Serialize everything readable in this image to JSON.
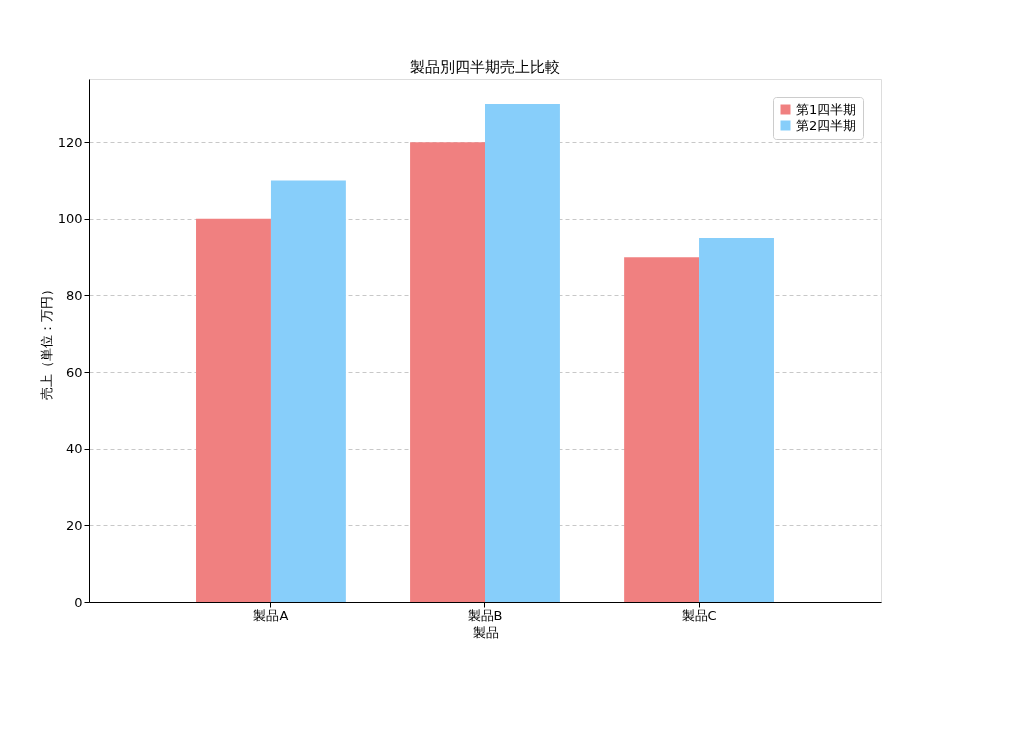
{
  "chart_data": {
    "type": "bar",
    "title": "製品別四半期売上比較",
    "xlabel": "製品",
    "ylabel": "売上（単位：万円）",
    "categories": [
      "製品A",
      "製品B",
      "製品C"
    ],
    "series": [
      {
        "name": "第1四半期",
        "color": "#f08080",
        "values": [
          100,
          120,
          90
        ]
      },
      {
        "name": "第2四半期",
        "color": "#87cefa",
        "values": [
          110,
          130,
          95
        ]
      }
    ],
    "ylim": [
      0,
      136.5
    ],
    "yticks": [
      0,
      20,
      40,
      60,
      80,
      100,
      120
    ],
    "grid": "y",
    "line_style": "dashed",
    "legend": "top right"
  }
}
